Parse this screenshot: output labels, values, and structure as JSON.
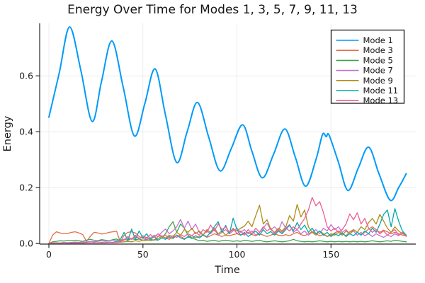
{
  "chart_data": {
    "type": "line",
    "title": "Energy Over Time for Modes 1, 3, 5, 7, 9, 11, 13",
    "xlabel": "Time",
    "ylabel": "Energy",
    "xlim": [
      -4.9,
      195.1
    ],
    "ylim": [
      -0.002,
      0.788
    ],
    "grid": true,
    "grid_color": "#ececec",
    "axis_color": "#2b2b2b",
    "tick_color": "#1f1f1f",
    "background": "#ffffff",
    "xticks": {
      "values": [
        0,
        50,
        100,
        150
      ],
      "labels": [
        "0",
        "50",
        "100",
        "150"
      ]
    },
    "yticks": {
      "values": [
        0.0,
        0.2,
        0.4,
        0.6
      ],
      "labels": [
        "0.0",
        "0.2",
        "0.4",
        "0.6"
      ]
    },
    "legend": {
      "position": "top-right",
      "border_color": "#1a1a1a",
      "background": "#ffffff"
    },
    "x_shared": [
      0,
      2,
      4,
      6,
      8,
      10,
      12,
      14,
      16,
      18,
      20,
      22,
      24,
      26,
      28,
      30,
      32,
      34,
      36,
      38,
      40,
      42,
      44,
      46,
      48,
      50,
      52,
      54,
      56,
      58,
      60,
      62,
      64,
      66,
      68,
      70,
      72,
      74,
      76,
      78,
      80,
      82,
      84,
      86,
      88,
      90,
      92,
      94,
      96,
      98,
      100,
      102,
      104,
      106,
      108,
      110,
      112,
      114,
      116,
      118,
      120,
      122,
      124,
      126,
      128,
      130,
      132,
      134,
      136,
      138,
      140,
      142,
      144,
      146,
      148,
      150,
      152,
      154,
      156,
      158,
      160,
      162,
      164,
      166,
      168,
      170,
      172,
      174,
      176,
      178,
      180,
      182,
      184,
      186,
      188,
      190
    ],
    "series": [
      {
        "name": "Mode 1",
        "color": "#009AFA",
        "smooth": true,
        "width": 2,
        "x": [
          0,
          5.5,
          11,
          17,
          23,
          28,
          33.5,
          39.5,
          45.5,
          51,
          56.5,
          62,
          68,
          73.5,
          79,
          85,
          91,
          97,
          103,
          108,
          113.5,
          119.5,
          125.5,
          131,
          136.5,
          142,
          145.5,
          147.5,
          149,
          154,
          159,
          164.5,
          170,
          175.5,
          181.5,
          186,
          190
        ],
        "values": [
          0.452,
          0.61,
          0.775,
          0.62,
          0.437,
          0.58,
          0.725,
          0.56,
          0.385,
          0.5,
          0.625,
          0.46,
          0.29,
          0.4,
          0.505,
          0.38,
          0.26,
          0.34,
          0.425,
          0.33,
          0.235,
          0.32,
          0.41,
          0.31,
          0.205,
          0.3,
          0.39,
          0.382,
          0.388,
          0.29,
          0.19,
          0.27,
          0.345,
          0.25,
          0.155,
          0.2,
          0.25
        ]
      },
      {
        "name": "Mode 3",
        "color": "#E36F47",
        "smooth": false,
        "width": 1.3,
        "values": [
          0.0,
          0.03,
          0.042,
          0.038,
          0.035,
          0.036,
          0.04,
          0.042,
          0.038,
          0.032,
          0.008,
          0.025,
          0.04,
          0.038,
          0.034,
          0.036,
          0.04,
          0.042,
          0.044,
          0.005,
          0.03,
          0.04,
          0.042,
          0.038,
          0.025,
          0.018,
          0.022,
          0.015,
          0.012,
          0.025,
          0.028,
          0.02,
          0.015,
          0.022,
          0.03,
          0.025,
          0.018,
          0.022,
          0.028,
          0.02,
          0.025,
          0.03,
          0.022,
          0.028,
          0.035,
          0.03,
          0.025,
          0.03,
          0.028,
          0.032,
          0.035,
          0.03,
          0.035,
          0.04,
          0.032,
          0.028,
          0.035,
          0.03,
          0.025,
          0.03,
          0.035,
          0.03,
          0.028,
          0.032,
          0.028,
          0.035,
          0.04,
          0.032,
          0.028,
          0.035,
          0.042,
          0.035,
          0.028,
          0.032,
          0.025,
          0.03,
          0.038,
          0.045,
          0.035,
          0.028,
          0.042,
          0.05,
          0.04,
          0.032,
          0.04,
          0.052,
          0.06,
          0.05,
          0.04,
          0.048,
          0.042,
          0.035,
          0.04,
          0.035,
          0.03,
          0.028
        ]
      },
      {
        "name": "Mode 5",
        "color": "#3EA44E",
        "smooth": false,
        "width": 1.3,
        "values": [
          0.0,
          0.006,
          0.008,
          0.01,
          0.009,
          0.011,
          0.01,
          0.012,
          0.01,
          0.008,
          0.012,
          0.015,
          0.012,
          0.01,
          0.014,
          0.012,
          0.01,
          0.014,
          0.016,
          0.01,
          0.015,
          0.012,
          0.018,
          0.014,
          0.016,
          0.012,
          0.015,
          0.01,
          0.014,
          0.012,
          0.02,
          0.035,
          0.06,
          0.078,
          0.04,
          0.07,
          0.055,
          0.03,
          0.02,
          0.015,
          0.01,
          0.012,
          0.008,
          0.01,
          0.012,
          0.008,
          0.01,
          0.012,
          0.01,
          0.008,
          0.01,
          0.008,
          0.012,
          0.01,
          0.008,
          0.01,
          0.012,
          0.008,
          0.006,
          0.008,
          0.01,
          0.008,
          0.006,
          0.008,
          0.01,
          0.015,
          0.01,
          0.008,
          0.006,
          0.008,
          0.006,
          0.008,
          0.01,
          0.008,
          0.006,
          0.008,
          0.006,
          0.008,
          0.006,
          0.008,
          0.006,
          0.008,
          0.006,
          0.008,
          0.006,
          0.008,
          0.01,
          0.008,
          0.006,
          0.008,
          0.01,
          0.008,
          0.012,
          0.01,
          0.008,
          0.006
        ]
      },
      {
        "name": "Mode 7",
        "color": "#C371D2",
        "smooth": false,
        "width": 1.3,
        "values": [
          0.0,
          0.002,
          0.003,
          0.002,
          0.004,
          0.003,
          0.004,
          0.005,
          0.004,
          0.006,
          0.005,
          0.008,
          0.006,
          0.008,
          0.01,
          0.008,
          0.01,
          0.012,
          0.01,
          0.012,
          0.015,
          0.02,
          0.015,
          0.025,
          0.018,
          0.022,
          0.015,
          0.02,
          0.03,
          0.025,
          0.04,
          0.052,
          0.035,
          0.045,
          0.06,
          0.086,
          0.055,
          0.08,
          0.05,
          0.07,
          0.04,
          0.03,
          0.045,
          0.035,
          0.05,
          0.03,
          0.04,
          0.05,
          0.035,
          0.045,
          0.055,
          0.04,
          0.05,
          0.035,
          0.045,
          0.03,
          0.04,
          0.055,
          0.073,
          0.05,
          0.06,
          0.045,
          0.078,
          0.055,
          0.068,
          0.04,
          0.05,
          0.035,
          0.045,
          0.03,
          0.04,
          0.05,
          0.035,
          0.055,
          0.045,
          0.068,
          0.05,
          0.06,
          0.04,
          0.05,
          0.035,
          0.045,
          0.03,
          0.04,
          0.028,
          0.035,
          0.025,
          0.035,
          0.028,
          0.022,
          0.03,
          0.025,
          0.035,
          0.028,
          0.04,
          0.03
        ]
      },
      {
        "name": "Mode 9",
        "color": "#AC8E18",
        "smooth": false,
        "width": 1.3,
        "values": [
          0.0,
          0.001,
          0.002,
          0.001,
          0.002,
          0.002,
          0.001,
          0.002,
          0.002,
          0.001,
          0.002,
          0.003,
          0.002,
          0.003,
          0.002,
          0.003,
          0.004,
          0.003,
          0.004,
          0.005,
          0.006,
          0.008,
          0.006,
          0.01,
          0.008,
          0.012,
          0.01,
          0.015,
          0.012,
          0.018,
          0.025,
          0.02,
          0.03,
          0.025,
          0.04,
          0.03,
          0.05,
          0.04,
          0.055,
          0.035,
          0.045,
          0.03,
          0.05,
          0.04,
          0.055,
          0.035,
          0.045,
          0.03,
          0.04,
          0.05,
          0.045,
          0.055,
          0.062,
          0.08,
          0.06,
          0.1,
          0.137,
          0.07,
          0.085,
          0.05,
          0.04,
          0.055,
          0.045,
          0.06,
          0.1,
          0.08,
          0.14,
          0.095,
          0.12,
          0.06,
          0.04,
          0.03,
          0.045,
          0.035,
          0.025,
          0.035,
          0.03,
          0.04,
          0.03,
          0.045,
          0.035,
          0.05,
          0.04,
          0.06,
          0.05,
          0.075,
          0.09,
          0.07,
          0.104,
          0.08,
          0.055,
          0.04,
          0.06,
          0.045,
          0.035,
          0.03
        ]
      },
      {
        "name": "Mode 11",
        "color": "#00AAAE",
        "smooth": false,
        "width": 1.3,
        "values": [
          0.0,
          0.001,
          0.002,
          0.001,
          0.002,
          0.001,
          0.002,
          0.001,
          0.002,
          0.002,
          0.003,
          0.002,
          0.003,
          0.002,
          0.004,
          0.003,
          0.005,
          0.004,
          0.008,
          0.015,
          0.04,
          0.01,
          0.052,
          0.015,
          0.045,
          0.02,
          0.035,
          0.015,
          0.025,
          0.012,
          0.02,
          0.015,
          0.025,
          0.018,
          0.03,
          0.02,
          0.015,
          0.025,
          0.018,
          0.028,
          0.02,
          0.03,
          0.025,
          0.04,
          0.06,
          0.078,
          0.04,
          0.065,
          0.035,
          0.091,
          0.05,
          0.03,
          0.04,
          0.025,
          0.035,
          0.045,
          0.03,
          0.05,
          0.035,
          0.043,
          0.03,
          0.045,
          0.035,
          0.05,
          0.065,
          0.045,
          0.075,
          0.05,
          0.066,
          0.04,
          0.055,
          0.035,
          0.045,
          0.03,
          0.04,
          0.025,
          0.035,
          0.028,
          0.038,
          0.025,
          0.035,
          0.028,
          0.04,
          0.03,
          0.045,
          0.035,
          0.055,
          0.04,
          0.07,
          0.104,
          0.12,
          0.06,
          0.125,
          0.08,
          0.045,
          0.03
        ]
      },
      {
        "name": "Mode 13",
        "color": "#EE5E93",
        "smooth": false,
        "width": 1.3,
        "values": [
          0.0,
          0.001,
          0.002,
          0.001,
          0.002,
          0.002,
          0.001,
          0.002,
          0.001,
          0.002,
          0.002,
          0.003,
          0.002,
          0.003,
          0.003,
          0.002,
          0.004,
          0.003,
          0.005,
          0.008,
          0.012,
          0.025,
          0.015,
          0.03,
          0.018,
          0.028,
          0.02,
          0.032,
          0.022,
          0.035,
          0.025,
          0.03,
          0.02,
          0.028,
          0.022,
          0.032,
          0.025,
          0.035,
          0.028,
          0.04,
          0.03,
          0.05,
          0.04,
          0.066,
          0.045,
          0.07,
          0.05,
          0.06,
          0.04,
          0.055,
          0.035,
          0.045,
          0.03,
          0.05,
          0.035,
          0.055,
          0.04,
          0.06,
          0.045,
          0.055,
          0.035,
          0.05,
          0.04,
          0.055,
          0.045,
          0.06,
          0.05,
          0.07,
          0.09,
          0.12,
          0.165,
          0.135,
          0.15,
          0.111,
          0.06,
          0.045,
          0.055,
          0.04,
          0.05,
          0.07,
          0.106,
          0.085,
          0.11,
          0.07,
          0.09,
          0.055,
          0.04,
          0.05,
          0.035,
          0.045,
          0.03,
          0.04,
          0.05,
          0.03,
          0.04,
          0.025
        ]
      }
    ]
  }
}
